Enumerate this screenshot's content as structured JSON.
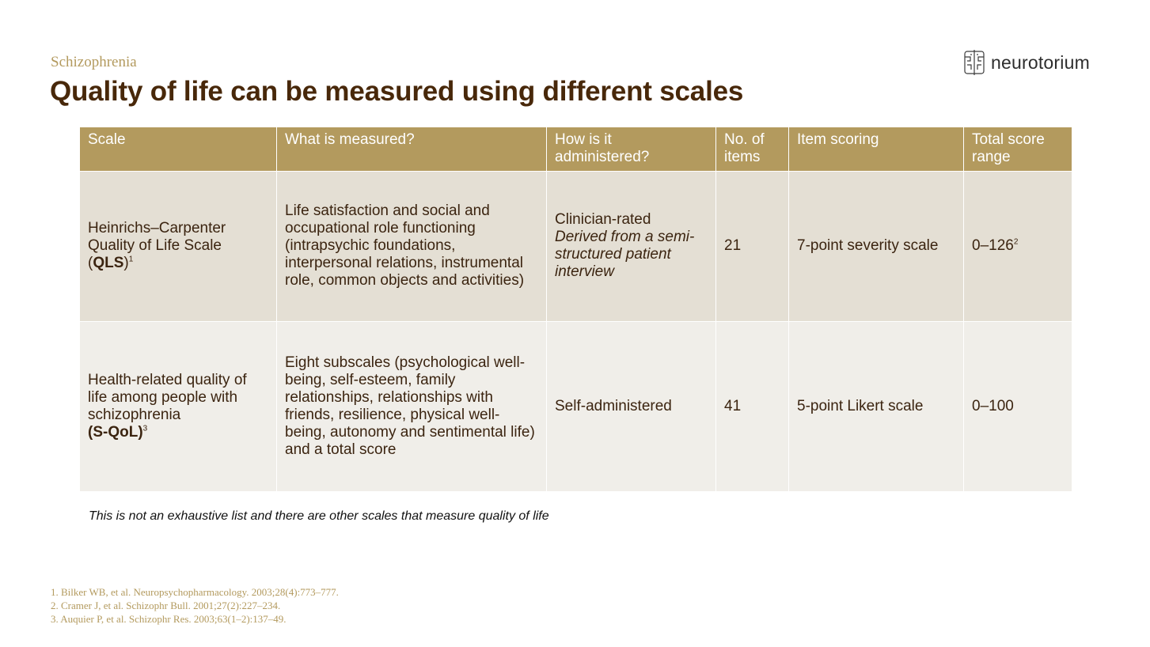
{
  "header": {
    "kicker": "Schizophrenia",
    "title": "Quality of life can be measured using different scales",
    "logo_text": "neurotorium"
  },
  "table": {
    "headers": [
      "Scale",
      "What is measured?",
      "How is it administered?",
      "No. of items",
      "Item scoring",
      "Total score range"
    ],
    "rows": [
      {
        "scale_line1": "Heinrichs–Carpenter",
        "scale_line2": "Quality of Life Scale",
        "scale_open": "(",
        "scale_abbr": "QLS",
        "scale_close": ")",
        "scale_ref": "1",
        "measured": "Life satisfaction and social and occupational role functioning (intrapsychic foundations, interpersonal relations, instrumental role, common objects and activities)",
        "administered": "Clinician-rated",
        "administered_note": "Derived from a semi-structured patient interview",
        "items": "21",
        "scoring": "7-point severity scale",
        "range": "0–126",
        "range_ref": "2"
      },
      {
        "scale_line1": "Health-related quality of",
        "scale_line2": "life among people with",
        "scale_line3": "schizophrenia",
        "scale_abbr": "(S-QoL)",
        "scale_ref": "3",
        "measured": "Eight subscales (psychological well-being, self-esteem, family relationships, relationships with friends, resilience, physical well-being, autonomy and sentimental life) and a total score",
        "administered": "Self-administered",
        "items": "41",
        "scoring": "5-point Likert scale",
        "range": "0–100"
      }
    ]
  },
  "note": "This is not an exhaustive list and there are other scales that measure quality of life",
  "references": [
    "1. Bilker WB, et al. Neuropsychopharmacology. 2003;28(4):773–777.",
    "2. Cramer J, et al. Schizophr Bull. 2001;27(2):227–234.",
    "3. Auquier P, et al. Schizophr Res. 2003;63(1–2):137–49."
  ]
}
